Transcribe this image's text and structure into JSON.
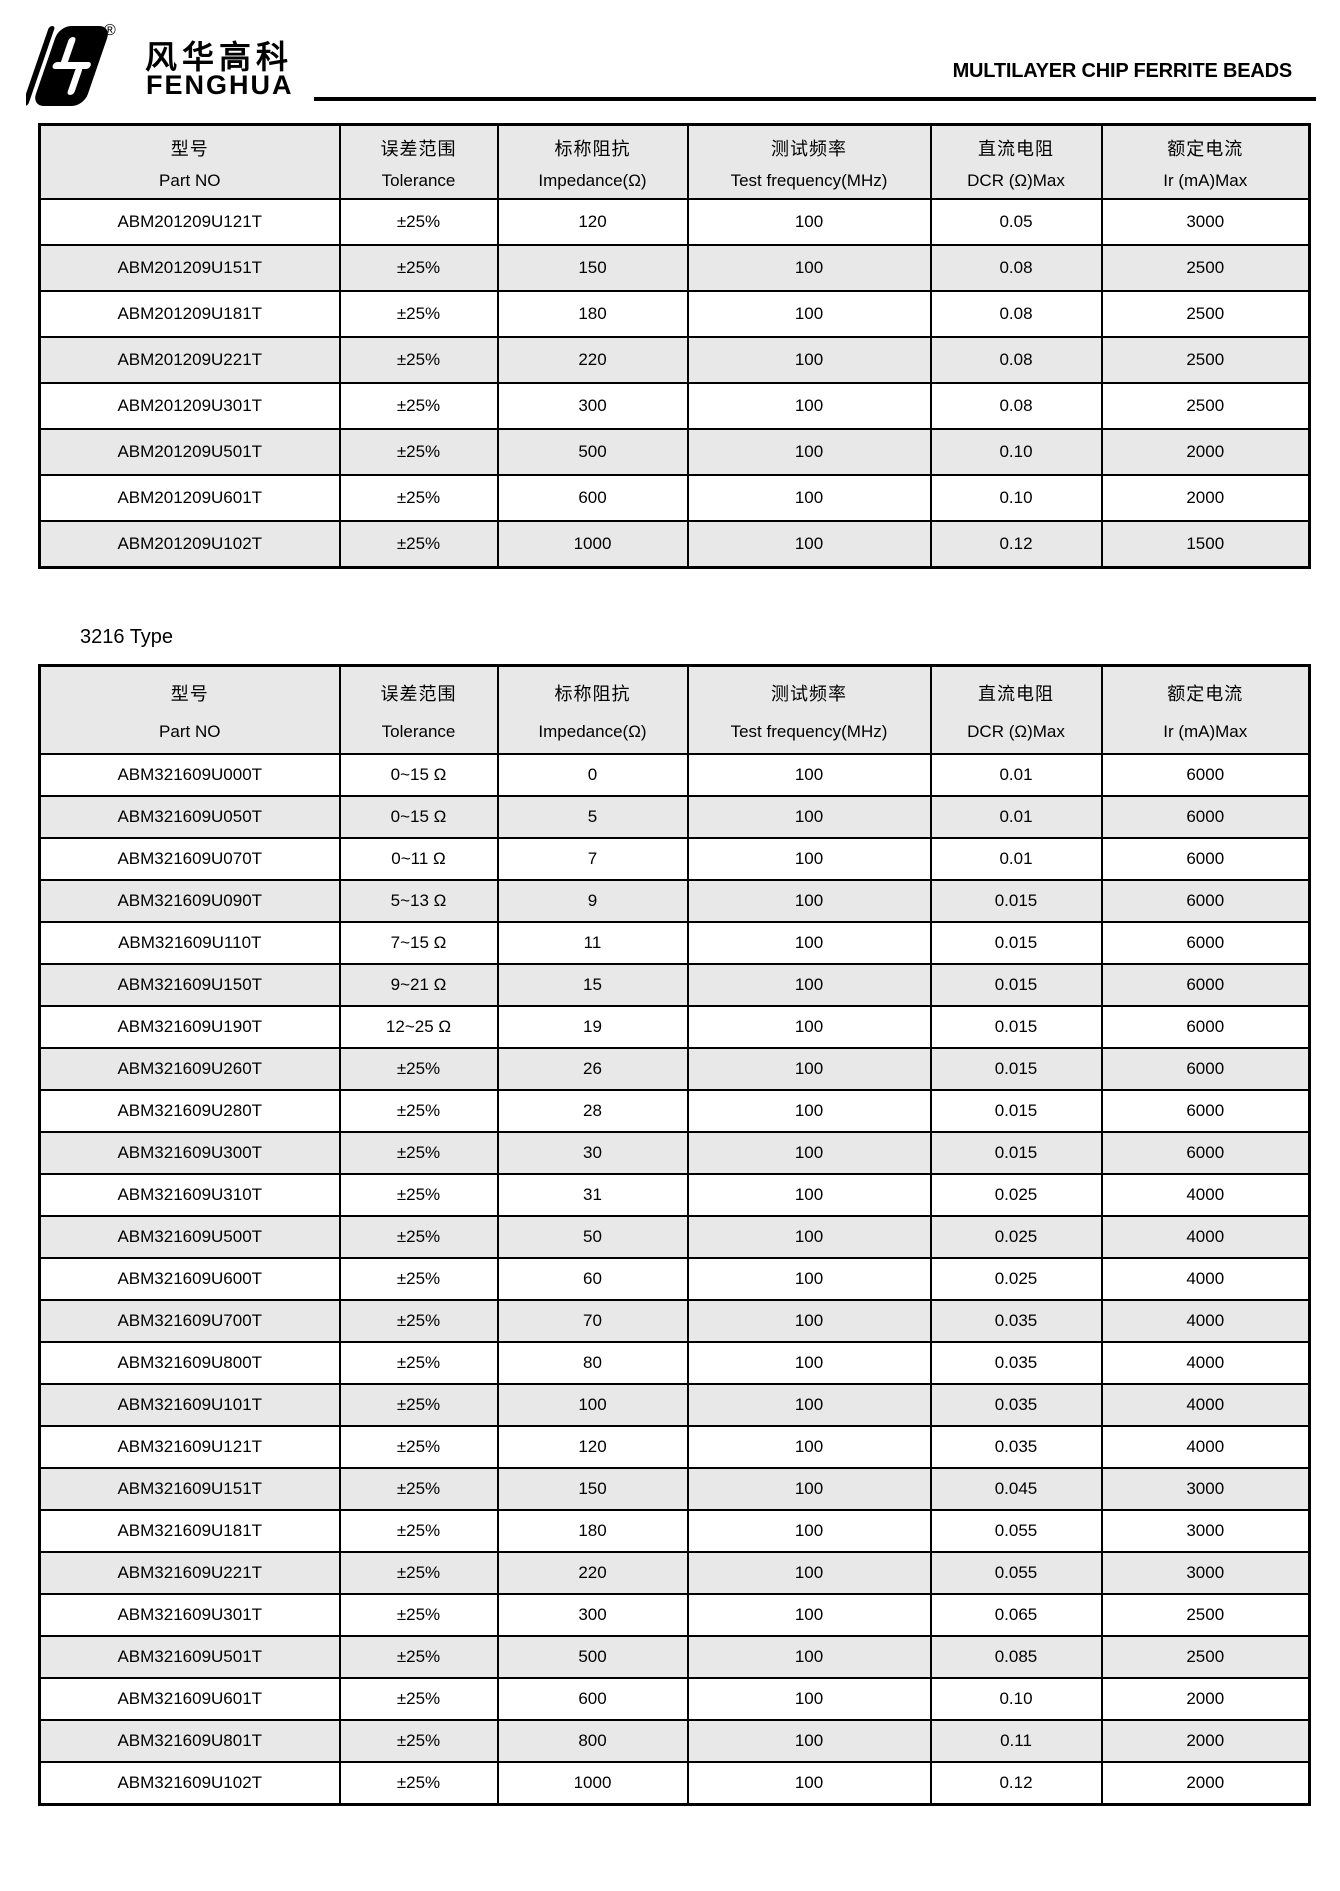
{
  "brand": {
    "registered": "®",
    "name_zh": "风华高科",
    "name_en": "FENGHUA"
  },
  "title": "MULTILAYER CHIP FERRITE BEADS",
  "columns": [
    {
      "zh": "型号",
      "en": "Part NO"
    },
    {
      "zh": "误差范围",
      "en": "Tolerance"
    },
    {
      "zh": "标称阻抗",
      "en": "Impedance(Ω)"
    },
    {
      "zh": "测试频率",
      "en": "Test frequency(MHz)"
    },
    {
      "zh": "直流电阻",
      "en": "DCR (Ω)Max"
    },
    {
      "zh": "额定电流",
      "en": "Ir (mA)Max"
    }
  ],
  "table_2012": {
    "rows": [
      [
        "ABM201209U121T",
        "±25%",
        "120",
        "100",
        "0.05",
        "3000"
      ],
      [
        "ABM201209U151T",
        "±25%",
        "150",
        "100",
        "0.08",
        "2500"
      ],
      [
        "ABM201209U181T",
        "±25%",
        "180",
        "100",
        "0.08",
        "2500"
      ],
      [
        "ABM201209U221T",
        "±25%",
        "220",
        "100",
        "0.08",
        "2500"
      ],
      [
        "ABM201209U301T",
        "±25%",
        "300",
        "100",
        "0.08",
        "2500"
      ],
      [
        "ABM201209U501T",
        "±25%",
        "500",
        "100",
        "0.10",
        "2000"
      ],
      [
        "ABM201209U601T",
        "±25%",
        "600",
        "100",
        "0.10",
        "2000"
      ],
      [
        "ABM201209U102T",
        "±25%",
        "1000",
        "100",
        "0.12",
        "1500"
      ]
    ]
  },
  "section_3216": {
    "label": "3216 Type"
  },
  "table_3216": {
    "rows": [
      [
        "ABM321609U000T",
        "0~15 Ω",
        "0",
        "100",
        "0.01",
        "6000"
      ],
      [
        "ABM321609U050T",
        "0~15 Ω",
        "5",
        "100",
        "0.01",
        "6000"
      ],
      [
        "ABM321609U070T",
        "0~11 Ω",
        "7",
        "100",
        "0.01",
        "6000"
      ],
      [
        "ABM321609U090T",
        "5~13 Ω",
        "9",
        "100",
        "0.015",
        "6000"
      ],
      [
        "ABM321609U110T",
        "7~15 Ω",
        "11",
        "100",
        "0.015",
        "6000"
      ],
      [
        "ABM321609U150T",
        "9~21 Ω",
        "15",
        "100",
        "0.015",
        "6000"
      ],
      [
        "ABM321609U190T",
        "12~25 Ω",
        "19",
        "100",
        "0.015",
        "6000"
      ],
      [
        "ABM321609U260T",
        "±25%",
        "26",
        "100",
        "0.015",
        "6000"
      ],
      [
        "ABM321609U280T",
        "±25%",
        "28",
        "100",
        "0.015",
        "6000"
      ],
      [
        "ABM321609U300T",
        "±25%",
        "30",
        "100",
        "0.015",
        "6000"
      ],
      [
        "ABM321609U310T",
        "±25%",
        "31",
        "100",
        "0.025",
        "4000"
      ],
      [
        "ABM321609U500T",
        "±25%",
        "50",
        "100",
        "0.025",
        "4000"
      ],
      [
        "ABM321609U600T",
        "±25%",
        "60",
        "100",
        "0.025",
        "4000"
      ],
      [
        "ABM321609U700T",
        "±25%",
        "70",
        "100",
        "0.035",
        "4000"
      ],
      [
        "ABM321609U800T",
        "±25%",
        "80",
        "100",
        "0.035",
        "4000"
      ],
      [
        "ABM321609U101T",
        "±25%",
        "100",
        "100",
        "0.035",
        "4000"
      ],
      [
        "ABM321609U121T",
        "±25%",
        "120",
        "100",
        "0.035",
        "4000"
      ],
      [
        "ABM321609U151T",
        "±25%",
        "150",
        "100",
        "0.045",
        "3000"
      ],
      [
        "ABM321609U181T",
        "±25%",
        "180",
        "100",
        "0.055",
        "3000"
      ],
      [
        "ABM321609U221T",
        "±25%",
        "220",
        "100",
        "0.055",
        "3000"
      ],
      [
        "ABM321609U301T",
        "±25%",
        "300",
        "100",
        "0.065",
        "2500"
      ],
      [
        "ABM321609U501T",
        "±25%",
        "500",
        "100",
        "0.085",
        "2500"
      ],
      [
        "ABM321609U601T",
        "±25%",
        "600",
        "100",
        "0.10",
        "2000"
      ],
      [
        "ABM321609U801T",
        "±25%",
        "800",
        "100",
        "0.11",
        "2000"
      ],
      [
        "ABM321609U102T",
        "±25%",
        "1000",
        "100",
        "0.12",
        "2000"
      ]
    ]
  },
  "colors": {
    "row_alt": "#e8e8e8",
    "border": "#000000",
    "text": "#000000"
  }
}
